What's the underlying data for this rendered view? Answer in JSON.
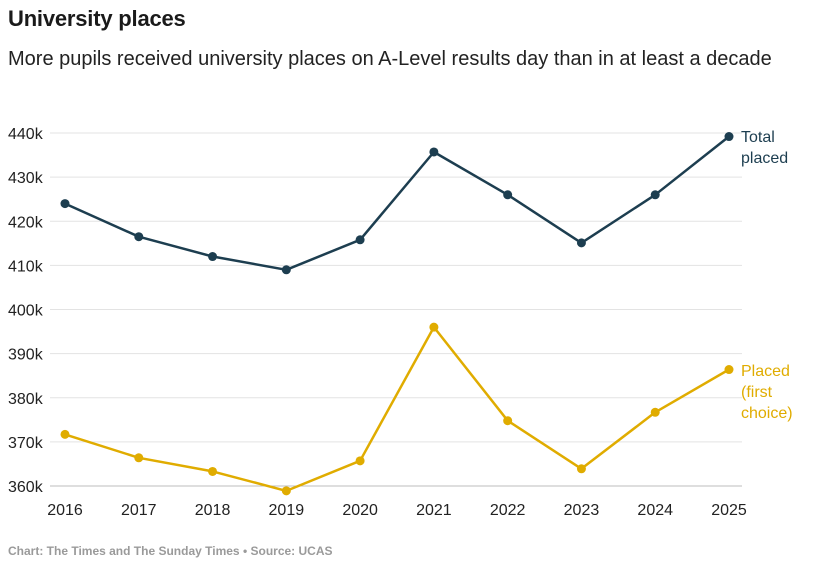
{
  "header": {
    "title": "University places",
    "subtitle": "More pupils received university places on A-Level results day than in at least a decade"
  },
  "footer": {
    "source": "Chart: The Times and The Sunday Times • Source: UCAS"
  },
  "colors": {
    "total": "#1d3e50",
    "placed": "#e0ac00",
    "grid": "#e3e3e3",
    "axis_text": "#222222"
  },
  "chart_data": {
    "type": "line",
    "title": "University places",
    "subtitle": "More pupils received university places on A-Level results day than in at least a decade",
    "xlabel": "",
    "ylabel": "",
    "x": [
      "2016",
      "2017",
      "2018",
      "2019",
      "2020",
      "2021",
      "2022",
      "2023",
      "2024",
      "2025"
    ],
    "ylim": [
      358000,
      440000
    ],
    "yticks": [
      360000,
      370000,
      380000,
      390000,
      400000,
      410000,
      420000,
      430000,
      440000
    ],
    "ytick_labels": [
      "360k",
      "370k",
      "380k",
      "390k",
      "400k",
      "410k",
      "420k",
      "430k",
      "440k"
    ],
    "grid": true,
    "legend": "direct labels at line ends (right)",
    "series": [
      {
        "name": "Total placed",
        "label_lines": [
          "Total",
          "placed"
        ],
        "color": "#1d3e50",
        "values": [
          424000,
          416500,
          412000,
          409000,
          415800,
          435700,
          426000,
          415100,
          426000,
          439200
        ]
      },
      {
        "name": "Placed (first choice)",
        "label_lines": [
          "Placed",
          "(first",
          "choice)"
        ],
        "color": "#e0ac00",
        "values": [
          371700,
          366400,
          363300,
          358900,
          365700,
          396000,
          374800,
          363900,
          376700,
          386400
        ]
      }
    ]
  }
}
